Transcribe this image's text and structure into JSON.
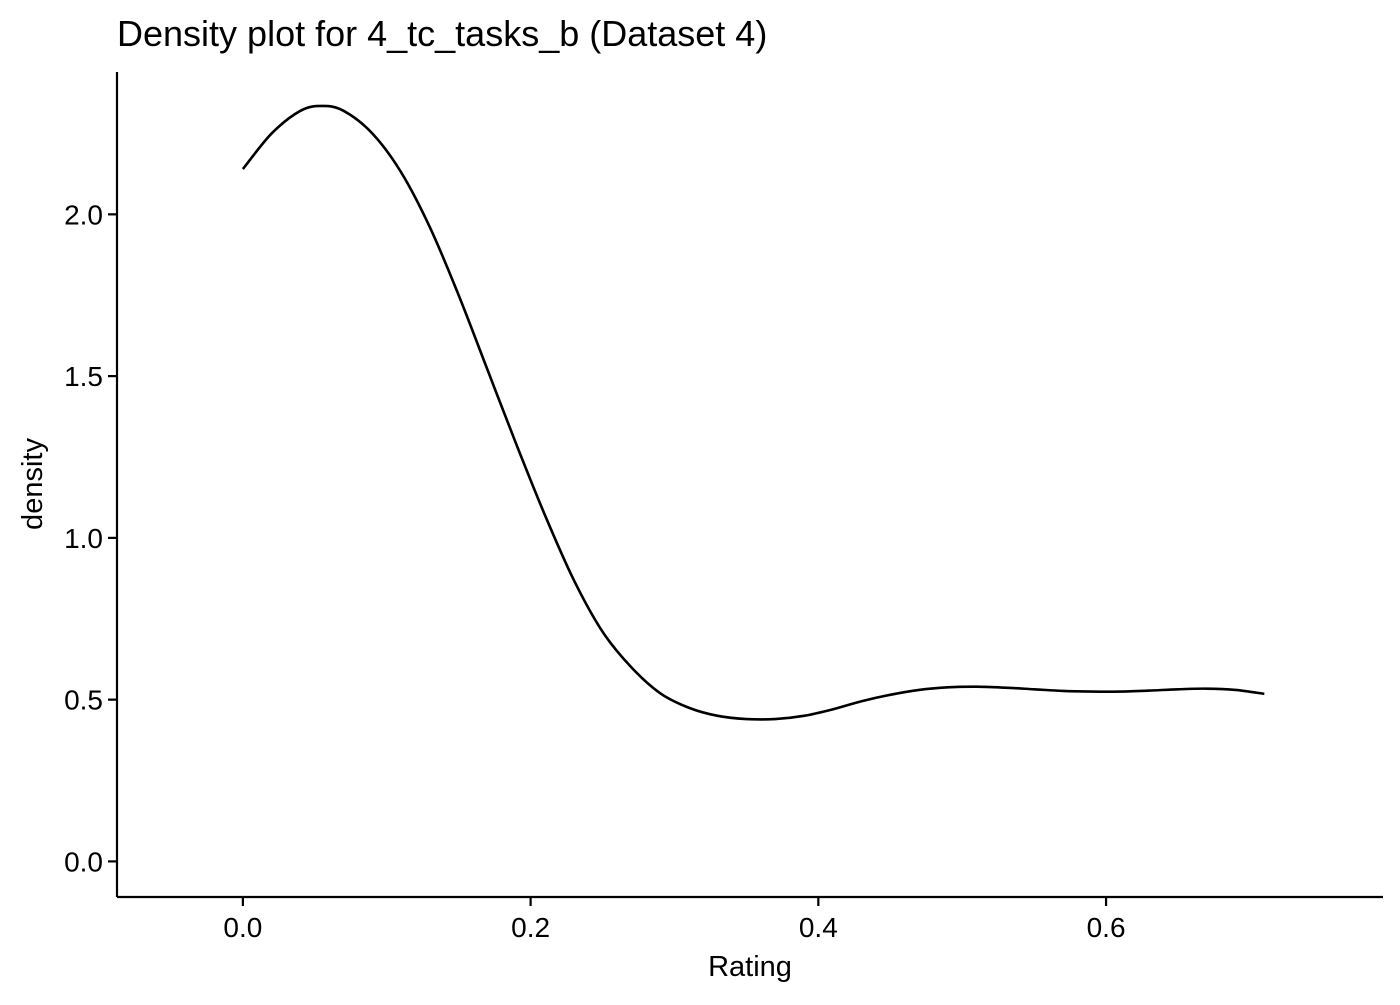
{
  "chart_data": {
    "type": "line",
    "title": "Density plot for 4_tc_tasks_b (Dataset 4)",
    "xlabel": "Rating",
    "ylabel": "density",
    "xlim": [
      -0.0875,
      0.7925
    ],
    "ylim": [
      -0.11,
      2.44
    ],
    "x_ticks": [
      0.0,
      0.2,
      0.4,
      0.6
    ],
    "x_tick_labels": [
      "0.0",
      "0.2",
      "0.4",
      "0.6"
    ],
    "y_ticks": [
      0.0,
      0.5,
      1.0,
      1.5,
      2.0
    ],
    "y_tick_labels": [
      "0.0",
      "0.5",
      "1.0",
      "1.5",
      "2.0"
    ],
    "grid": false,
    "legend": "none",
    "line_color": "#000000",
    "series": [
      {
        "x": [
          0.0,
          0.02,
          0.04,
          0.055,
          0.07,
          0.09,
          0.11,
          0.13,
          0.15,
          0.17,
          0.19,
          0.21,
          0.23,
          0.25,
          0.27,
          0.29,
          0.31,
          0.33,
          0.35,
          0.37,
          0.39,
          0.41,
          0.43,
          0.45,
          0.47,
          0.49,
          0.51,
          0.53,
          0.55,
          0.57,
          0.59,
          0.61,
          0.63,
          0.65,
          0.67,
          0.69,
          0.71
        ],
        "y": [
          2.14,
          2.25,
          2.32,
          2.335,
          2.32,
          2.25,
          2.13,
          1.96,
          1.75,
          1.52,
          1.29,
          1.07,
          0.87,
          0.71,
          0.6,
          0.52,
          0.475,
          0.45,
          0.44,
          0.44,
          0.45,
          0.47,
          0.495,
          0.515,
          0.53,
          0.538,
          0.54,
          0.537,
          0.532,
          0.527,
          0.525,
          0.525,
          0.528,
          0.532,
          0.534,
          0.53,
          0.518
        ]
      }
    ]
  }
}
